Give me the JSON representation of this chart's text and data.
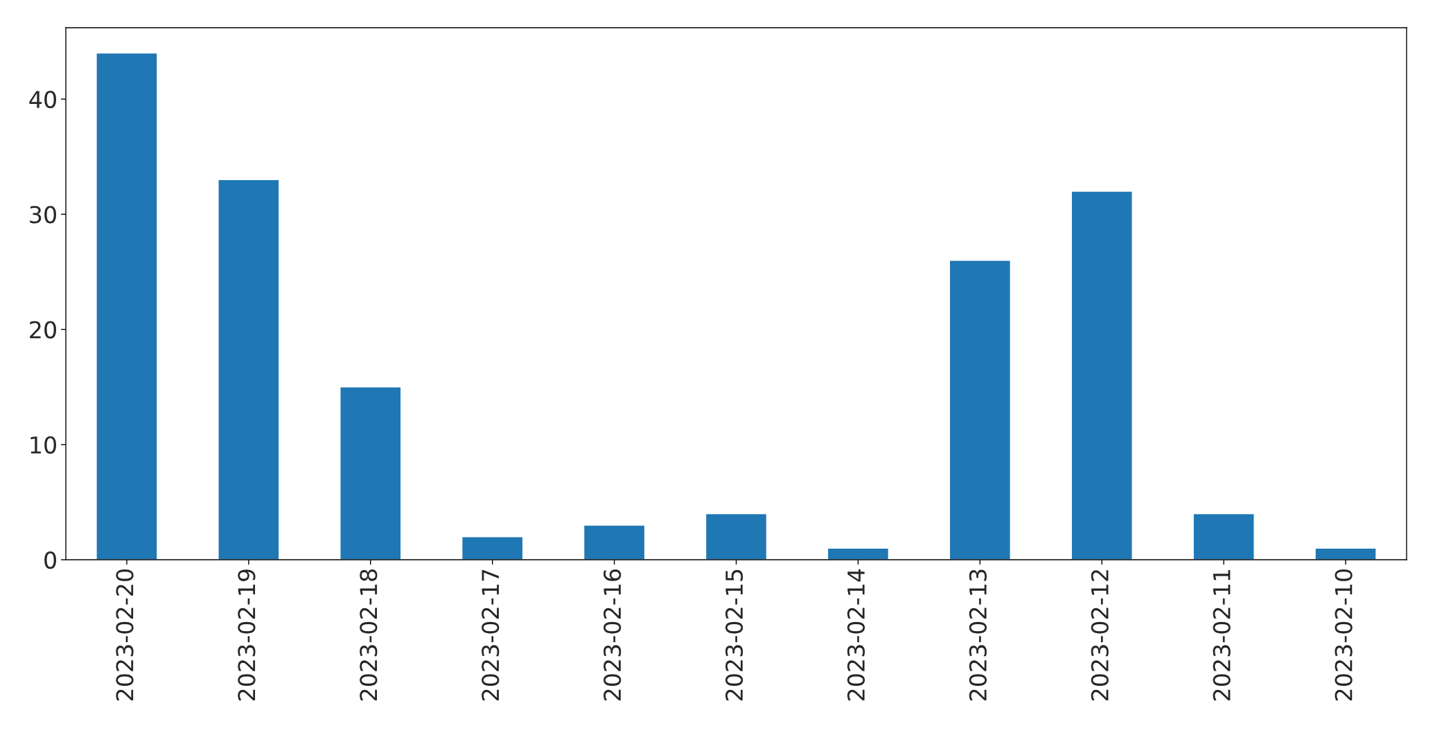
{
  "chart_data": {
    "type": "bar",
    "categories": [
      "2023-02-20",
      "2023-02-19",
      "2023-02-18",
      "2023-02-17",
      "2023-02-16",
      "2023-02-15",
      "2023-02-14",
      "2023-02-13",
      "2023-02-12",
      "2023-02-11",
      "2023-02-10"
    ],
    "values": [
      44,
      33,
      15,
      2,
      3,
      4,
      1,
      26,
      32,
      4,
      1
    ],
    "color": "#1f77b4",
    "ylim": [
      0,
      46.2
    ],
    "yticks": [
      0,
      10,
      20,
      30,
      40
    ],
    "grid": false,
    "legend": false
  }
}
